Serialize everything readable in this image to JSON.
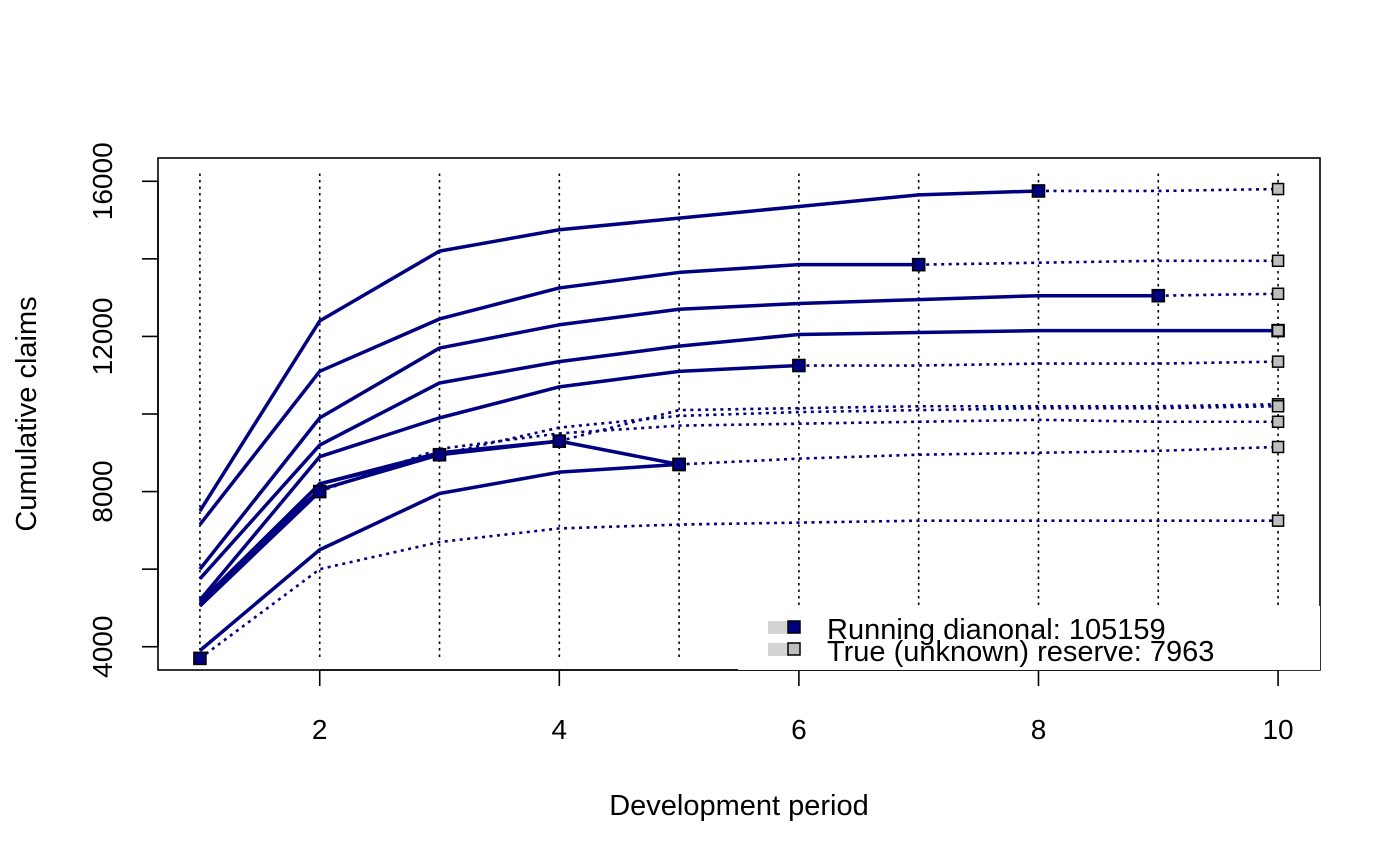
{
  "chart_data": {
    "type": "line",
    "title": "",
    "xlabel": "Development period",
    "ylabel": "Cumulative claims",
    "xlim": [
      0.65,
      10.35
    ],
    "ylim": [
      3400,
      16600
    ],
    "x_ticks": [
      2,
      4,
      6,
      8,
      10
    ],
    "y_ticks": [
      4000,
      8000,
      12000,
      16000
    ],
    "y_minor_ticks": [
      6000,
      10000,
      14000
    ],
    "vgrid_x": [
      1,
      2,
      3,
      4,
      5,
      6,
      7,
      8,
      9,
      10
    ],
    "grid_style": "dotted",
    "colors": {
      "line": "#000080",
      "observed_marker": "#000080",
      "reserve_marker": "#bebebe"
    },
    "legend": {
      "placement": "bottom-right",
      "entries": [
        "Running dianonal: 105159",
        "True (unknown) reserve: 7963"
      ]
    },
    "series": [
      {
        "observed": [
          [
            1,
            7500
          ],
          [
            2,
            12400
          ],
          [
            3,
            14200
          ],
          [
            4,
            14750
          ],
          [
            5,
            15050
          ],
          [
            6,
            15350
          ],
          [
            7,
            15650
          ],
          [
            8,
            15750
          ]
        ],
        "future": [
          [
            9,
            15750
          ],
          [
            10,
            15800
          ]
        ]
      },
      {
        "observed": [
          [
            1,
            7150
          ],
          [
            2,
            11100
          ],
          [
            3,
            12450
          ],
          [
            4,
            13250
          ],
          [
            5,
            13650
          ],
          [
            6,
            13850
          ],
          [
            7,
            13850
          ]
        ],
        "future": [
          [
            8,
            13900
          ],
          [
            9,
            13950
          ],
          [
            10,
            13950
          ]
        ]
      },
      {
        "observed": [
          [
            1,
            6000
          ],
          [
            2,
            9900
          ],
          [
            3,
            11700
          ],
          [
            4,
            12300
          ],
          [
            5,
            12700
          ],
          [
            6,
            12850
          ],
          [
            7,
            12950
          ],
          [
            8,
            13050
          ],
          [
            9,
            13050
          ]
        ],
        "future": [
          [
            10,
            13100
          ]
        ]
      },
      {
        "observed": [
          [
            1,
            5750
          ],
          [
            2,
            9200
          ],
          [
            3,
            10800
          ],
          [
            4,
            11350
          ],
          [
            5,
            11750
          ],
          [
            6,
            12050
          ],
          [
            7,
            12100
          ],
          [
            8,
            12150
          ],
          [
            9,
            12150
          ],
          [
            10,
            12150
          ]
        ],
        "future": []
      },
      {
        "observed": [
          [
            1,
            5200
          ],
          [
            2,
            8900
          ],
          [
            3,
            9900
          ],
          [
            4,
            10700
          ],
          [
            5,
            11100
          ],
          [
            6,
            11250
          ]
        ],
        "future": [
          [
            7,
            11250
          ],
          [
            8,
            11300
          ],
          [
            9,
            11300
          ],
          [
            10,
            11350
          ]
        ]
      },
      {
        "observed": [
          [
            1,
            5150
          ],
          [
            2,
            8200
          ],
          [
            3,
            9000
          ],
          [
            4,
            9300
          ]
        ],
        "future": [
          [
            5,
            10100
          ],
          [
            6,
            10150
          ],
          [
            7,
            10200
          ],
          [
            8,
            10200
          ],
          [
            9,
            10200
          ],
          [
            10,
            10250
          ]
        ]
      },
      {
        "observed": [
          [
            1,
            5050
          ],
          [
            2,
            8200
          ],
          [
            3,
            8950
          ]
        ],
        "future": [
          [
            4,
            9650
          ],
          [
            5,
            9950
          ],
          [
            6,
            10050
          ],
          [
            7,
            10100
          ],
          [
            8,
            10150
          ],
          [
            9,
            10150
          ],
          [
            10,
            10200
          ]
        ]
      },
      {
        "observed": [
          [
            1,
            5100
          ],
          [
            2,
            8050
          ],
          [
            3,
            8950
          ],
          [
            4,
            9300
          ],
          [
            5,
            8700
          ]
        ],
        "future": [
          [
            6,
            8850
          ],
          [
            7,
            8950
          ],
          [
            8,
            9000
          ],
          [
            9,
            9050
          ],
          [
            10,
            9150
          ]
        ]
      },
      {
        "observed": [
          [
            1,
            5050
          ],
          [
            2,
            8000
          ]
        ],
        "future": [
          [
            3,
            9100
          ],
          [
            4,
            9500
          ],
          [
            5,
            9700
          ],
          [
            6,
            9750
          ],
          [
            7,
            9800
          ],
          [
            8,
            9850
          ],
          [
            9,
            9800
          ],
          [
            10,
            9800
          ]
        ]
      },
      {
        "observed": [
          [
            1,
            3900
          ],
          [
            2,
            6500
          ],
          [
            3,
            7950
          ],
          [
            4,
            8500
          ],
          [
            5,
            8700
          ]
        ],
        "future": []
      },
      {
        "observed": [
          [
            1,
            3700
          ]
        ],
        "future": [
          [
            2,
            6000
          ],
          [
            3,
            6700
          ],
          [
            4,
            7050
          ],
          [
            5,
            7150
          ],
          [
            6,
            7200
          ],
          [
            7,
            7250
          ],
          [
            8,
            7250
          ],
          [
            9,
            7250
          ],
          [
            10,
            7250
          ]
        ]
      }
    ]
  }
}
